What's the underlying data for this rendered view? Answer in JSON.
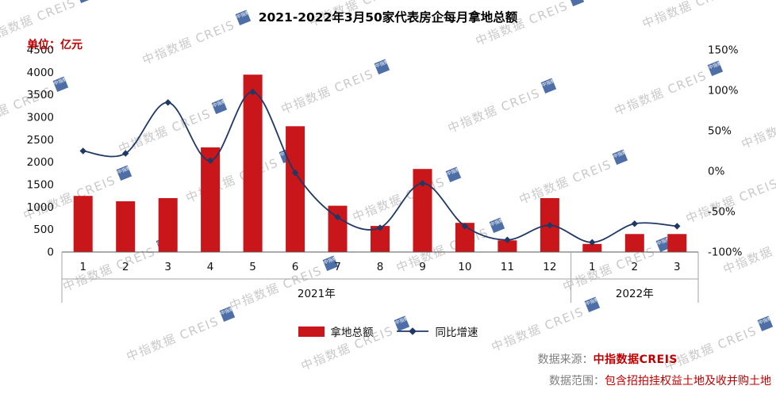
{
  "title": "2021-2022年3月50家代表房企每月拿地总额",
  "unit_label": "单位：亿元",
  "legend": {
    "bar_label": "拿地总额",
    "line_label": "同比增速"
  },
  "watermark": {
    "text": "中指数据 CREIS",
    "logo_text": "中指数据"
  },
  "footer": {
    "source_label": "数据来源：",
    "source_value": "中指数据CREIS",
    "scope_label": "数据范围：",
    "scope_value": "包含招拍挂权益土地及收并购土地"
  },
  "colors": {
    "bar": "#C8161B",
    "line": "#1F3864",
    "accent_red": "#C00000",
    "watermark_gray": "#C9C9C9",
    "watermark_blue": "#2F5597"
  },
  "chart_data": {
    "type": "bar+line combo",
    "title": "2021-2022年3月50家代表房企每月拿地总额",
    "categories": [
      "1",
      "2",
      "3",
      "4",
      "5",
      "6",
      "7",
      "8",
      "9",
      "10",
      "11",
      "12",
      "1",
      "2",
      "3"
    ],
    "group_labels": [
      {
        "label": "2021年",
        "span": 12
      },
      {
        "label": "2022年",
        "span": 3
      }
    ],
    "series": [
      {
        "name": "拿地总额",
        "type": "bar",
        "axis": "left",
        "unit": "亿元",
        "values": [
          1250,
          1130,
          1200,
          2330,
          3950,
          2800,
          1030,
          580,
          1850,
          650,
          260,
          1200,
          180,
          400,
          400
        ]
      },
      {
        "name": "同比增速",
        "type": "line",
        "axis": "right",
        "unit": "%",
        "values": [
          25,
          22,
          85,
          13,
          98,
          -2,
          -57,
          -70,
          -15,
          -68,
          -85,
          -67,
          -88,
          -65,
          -68
        ]
      }
    ],
    "left_axis": {
      "min": 0,
      "max": 4500,
      "step": 500,
      "ticks": [
        0,
        500,
        1000,
        1500,
        2000,
        2500,
        3000,
        3500,
        4000,
        4500
      ]
    },
    "right_axis": {
      "min": -100,
      "max": 150,
      "step": 50,
      "ticks": [
        -100,
        -50,
        0,
        50,
        100,
        150
      ],
      "suffix": "%"
    },
    "grid": false,
    "legend_position": "bottom"
  }
}
